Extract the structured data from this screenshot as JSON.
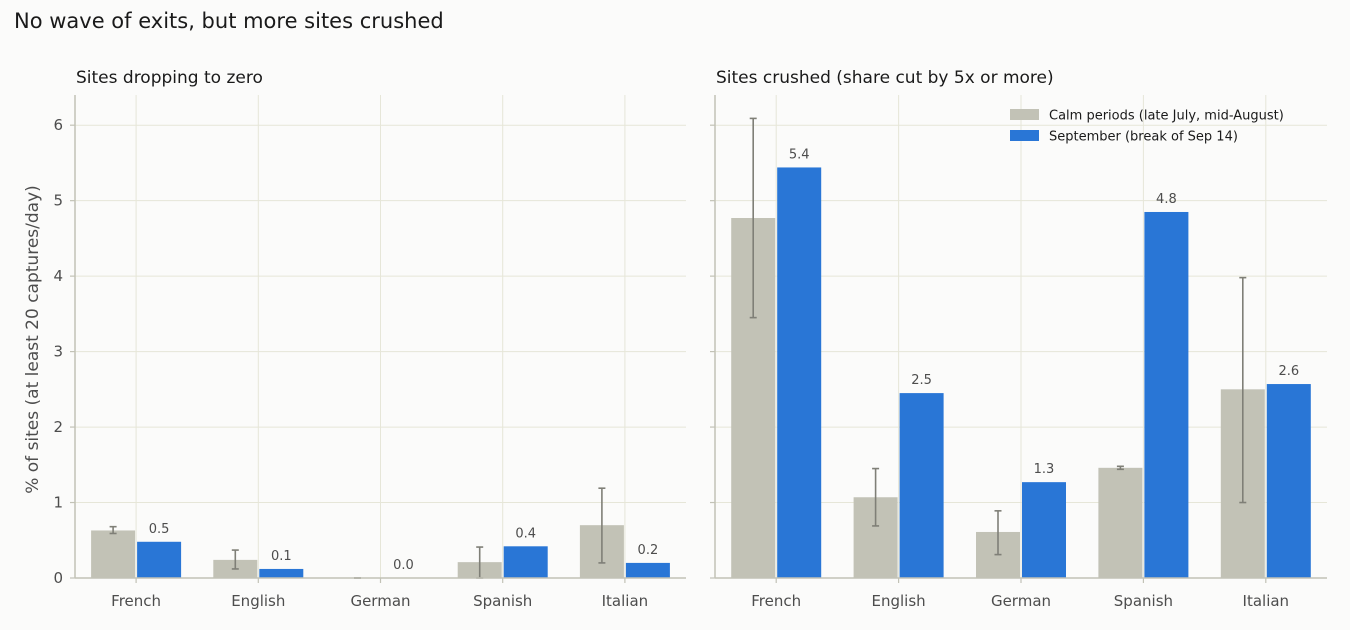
{
  "suptitle": "No wave of exits, but more sites crushed",
  "colors": {
    "calm": "#c2c2b6",
    "september": "#2976d6",
    "grid": "#e6e6d8",
    "axis": "#c2c2b6",
    "errorbar": "#7f7f77",
    "text": "#4d4d4d",
    "title": "#1a1a1a",
    "background": "#fbfbfa"
  },
  "chart_data": [
    {
      "type": "bar",
      "title": "Sites dropping to zero",
      "ylabel": "% of sites (at least 20 captures/day)",
      "xlabel": "",
      "ylim": [
        0,
        6.4
      ],
      "yticks": [
        0,
        1,
        2,
        3,
        4,
        5,
        6
      ],
      "grid": true,
      "categories": [
        "French",
        "English",
        "German",
        "Spanish",
        "Italian"
      ],
      "series": [
        {
          "name": "Calm periods (late July, mid-August)",
          "values": [
            0.63,
            0.24,
            0.0,
            0.21,
            0.7
          ],
          "err_low": [
            0.59,
            0.12,
            0.0,
            0.0,
            0.2
          ],
          "err_high": [
            0.68,
            0.37,
            0.0,
            0.41,
            1.19
          ]
        },
        {
          "name": "September (break of Sep 14)",
          "values": [
            0.48,
            0.12,
            0.0,
            0.42,
            0.2
          ],
          "labels": [
            "0.5",
            "0.1",
            "0.0",
            "0.4",
            "0.2"
          ]
        }
      ]
    },
    {
      "type": "bar",
      "title": "Sites crushed (share cut by 5x or more)",
      "ylabel": "",
      "xlabel": "",
      "ylim": [
        0,
        6.4
      ],
      "yticks": [
        0,
        1,
        2,
        3,
        4,
        5,
        6
      ],
      "grid": true,
      "legend": "top-right",
      "categories": [
        "French",
        "English",
        "German",
        "Spanish",
        "Italian"
      ],
      "series": [
        {
          "name": "Calm periods (late July, mid-August)",
          "values": [
            4.77,
            1.07,
            0.61,
            1.46,
            2.5
          ],
          "err_low": [
            3.45,
            0.69,
            0.31,
            1.44,
            1.0
          ],
          "err_high": [
            6.09,
            1.45,
            0.89,
            1.48,
            3.98
          ]
        },
        {
          "name": "September (break of Sep 14)",
          "values": [
            5.44,
            2.45,
            1.27,
            4.85,
            2.57
          ],
          "labels": [
            "5.4",
            "2.5",
            "1.3",
            "4.8",
            "2.6"
          ]
        }
      ]
    }
  ]
}
